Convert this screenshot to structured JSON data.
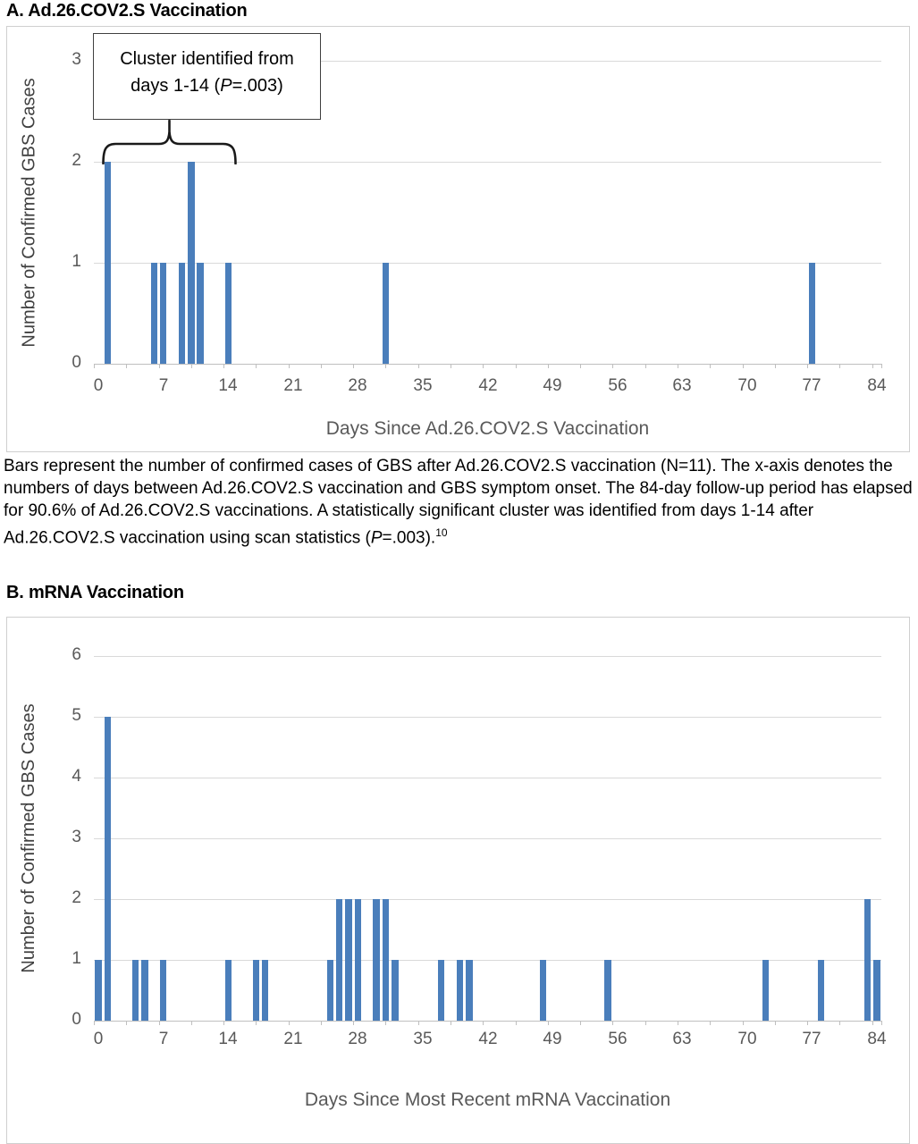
{
  "figure": {
    "panel_a_heading": "A. Ad.26.COV2.S Vaccination",
    "panel_b_heading": "B. mRNA Vaccination"
  },
  "colors": {
    "bar": "#4a7ebb",
    "gridline": "#d9d9d9",
    "axis_line": "#bfbfbf",
    "tick_text": "#595959",
    "axis_title_text": "#595959",
    "y_axis_title_text": "#404040",
    "body_text": "#000000",
    "frame_border": "#cfcfcf",
    "annotation_border": "#404040"
  },
  "caption_a": {
    "part1": "Bars represent the number of confirmed cases of GBS after Ad.26.COV2.S vaccination (N=11). The x-axis denotes the numbers of days between Ad.26.COV2.S vaccination and GBS symptom onset. The 84-day follow-up period has elapsed for 90.6% of Ad.26.COV2.S vaccinations. A statistically significant cluster was identified from days 1-14 after Ad.26.COV2.S vaccination using scan statistics (",
    "p": "P",
    "part2": "=.003).",
    "sup": "10"
  },
  "chart_data": [
    {
      "type": "bar",
      "panel": "A",
      "title": "A. Ad.26.COV2.S Vaccination",
      "xlabel": "Days Since Ad.26.COV2.S Vaccination",
      "ylabel": "Number of Confirmed GBS Cases",
      "x": [
        1,
        6,
        7,
        9,
        10,
        11,
        14,
        31,
        77
      ],
      "values": [
        2,
        1,
        1,
        1,
        2,
        1,
        1,
        1,
        1
      ],
      "total_cases": 11,
      "xlim": [
        0,
        84
      ],
      "ylim": [
        0,
        3
      ],
      "xticks": [
        0,
        7,
        14,
        21,
        28,
        35,
        42,
        49,
        56,
        63,
        70,
        77,
        84
      ],
      "yticks": [
        0,
        1,
        2,
        3
      ],
      "grid": true,
      "legend": "none",
      "annotation_box": {
        "line1": "Cluster identified from",
        "line2_pre": "days 1-14 (",
        "line2_p": "P",
        "line2_post": "=.003)"
      },
      "annotation_span_days": [
        1,
        14
      ]
    },
    {
      "type": "bar",
      "panel": "B",
      "title": "B. mRNA Vaccination",
      "xlabel": "Days Since Most Recent mRNA Vaccination",
      "ylabel": "Number of Confirmed GBS Cases",
      "x": [
        0,
        1,
        4,
        5,
        7,
        14,
        17,
        18,
        25,
        26,
        27,
        28,
        30,
        31,
        32,
        37,
        39,
        40,
        48,
        55,
        72,
        78,
        83,
        84
      ],
      "values": [
        1,
        5,
        1,
        1,
        1,
        1,
        1,
        1,
        1,
        2,
        2,
        2,
        2,
        2,
        1,
        1,
        1,
        1,
        1,
        1,
        1,
        1,
        2,
        1
      ],
      "total_cases": 34,
      "xlim": [
        0,
        84
      ],
      "ylim": [
        0,
        6
      ],
      "xticks": [
        0,
        7,
        14,
        21,
        28,
        35,
        42,
        49,
        56,
        63,
        70,
        77,
        84
      ],
      "yticks": [
        0,
        1,
        2,
        3,
        4,
        5,
        6
      ],
      "grid": true,
      "legend": "none"
    }
  ]
}
